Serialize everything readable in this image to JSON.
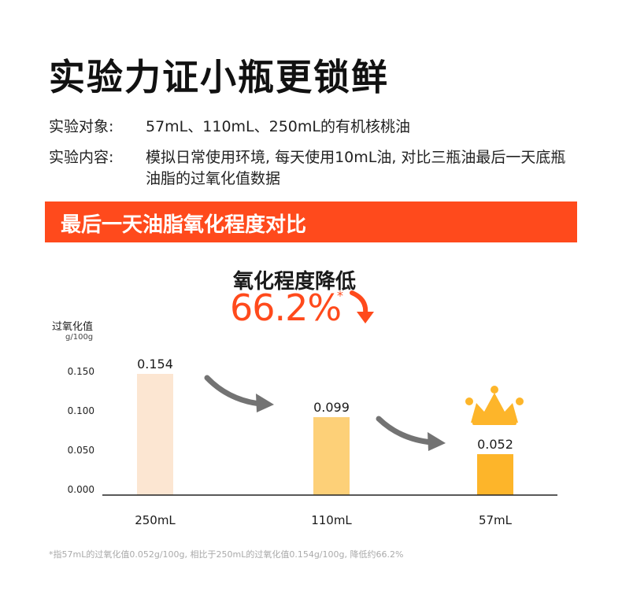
{
  "title": "实验力证小瓶更锁鲜",
  "info": {
    "subject_label": "实验对象:",
    "subject_value": "57mL、110mL、250mL的有机核桃油",
    "content_label": "实验内容:",
    "content_value": "模拟日常使用环境, 每天使用10mL油, 对比三瓶油最后一天底瓶油脂的过氧化值数据"
  },
  "banner": {
    "text": "最后一天油脂氧化程度对比",
    "color": "#ff4a1c"
  },
  "highlight": {
    "label": "氧化程度降低",
    "value": "66.2%",
    "asterisk": "*",
    "arrow_icon": "curved-down-arrow-icon"
  },
  "chart_data": {
    "type": "bar",
    "ylabel": "过氧化值",
    "yunit": "g/100g",
    "categories": [
      "250mL",
      "110mL",
      "57mL"
    ],
    "values": [
      0.154,
      0.099,
      0.052
    ],
    "value_labels": [
      "0.154",
      "0.099",
      "0.052"
    ],
    "bar_colors": [
      "#fce6d2",
      "#fdd078",
      "#fdb52a"
    ],
    "yticks": [
      "0.000",
      "0.050",
      "0.100",
      "0.150"
    ],
    "ylim": [
      0,
      0.175
    ],
    "grid": false,
    "decorations": [
      "crown-icon",
      "curved-arrow-icon"
    ]
  },
  "footnote": "*指57mL的过氧化值0.052g/100g, 相比于250mL的过氧化值0.154g/100g, 降低约66.2%"
}
